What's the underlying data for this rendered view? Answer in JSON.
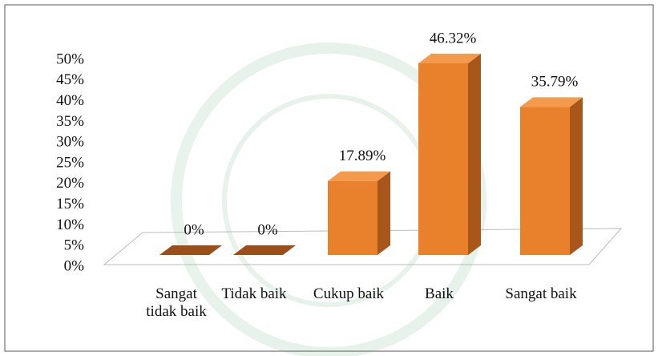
{
  "chart_data": {
    "type": "bar3d",
    "categories": [
      "Sangat tidak baik",
      "Tidak baik",
      "Cukup baik",
      "Baik",
      "Sangat baik"
    ],
    "values": [
      0,
      0,
      17.89,
      46.32,
      35.79
    ],
    "value_labels": [
      "0%",
      "0%",
      "17.89%",
      "46.32%",
      "35.79%"
    ],
    "color": "#e8802c",
    "ylim": [
      0,
      50
    ],
    "yticks": [
      {
        "value": 0,
        "label": "0%"
      },
      {
        "value": 5,
        "label": "5%"
      },
      {
        "value": 10,
        "label": "10%"
      },
      {
        "value": 15,
        "label": "15%"
      },
      {
        "value": 20,
        "label": "20%"
      },
      {
        "value": 25,
        "label": "25%"
      },
      {
        "value": 30,
        "label": "30%"
      },
      {
        "value": 35,
        "label": "35%"
      },
      {
        "value": 40,
        "label": "40%"
      },
      {
        "value": 45,
        "label": "45%"
      },
      {
        "value": 50,
        "label": "50%"
      }
    ]
  }
}
